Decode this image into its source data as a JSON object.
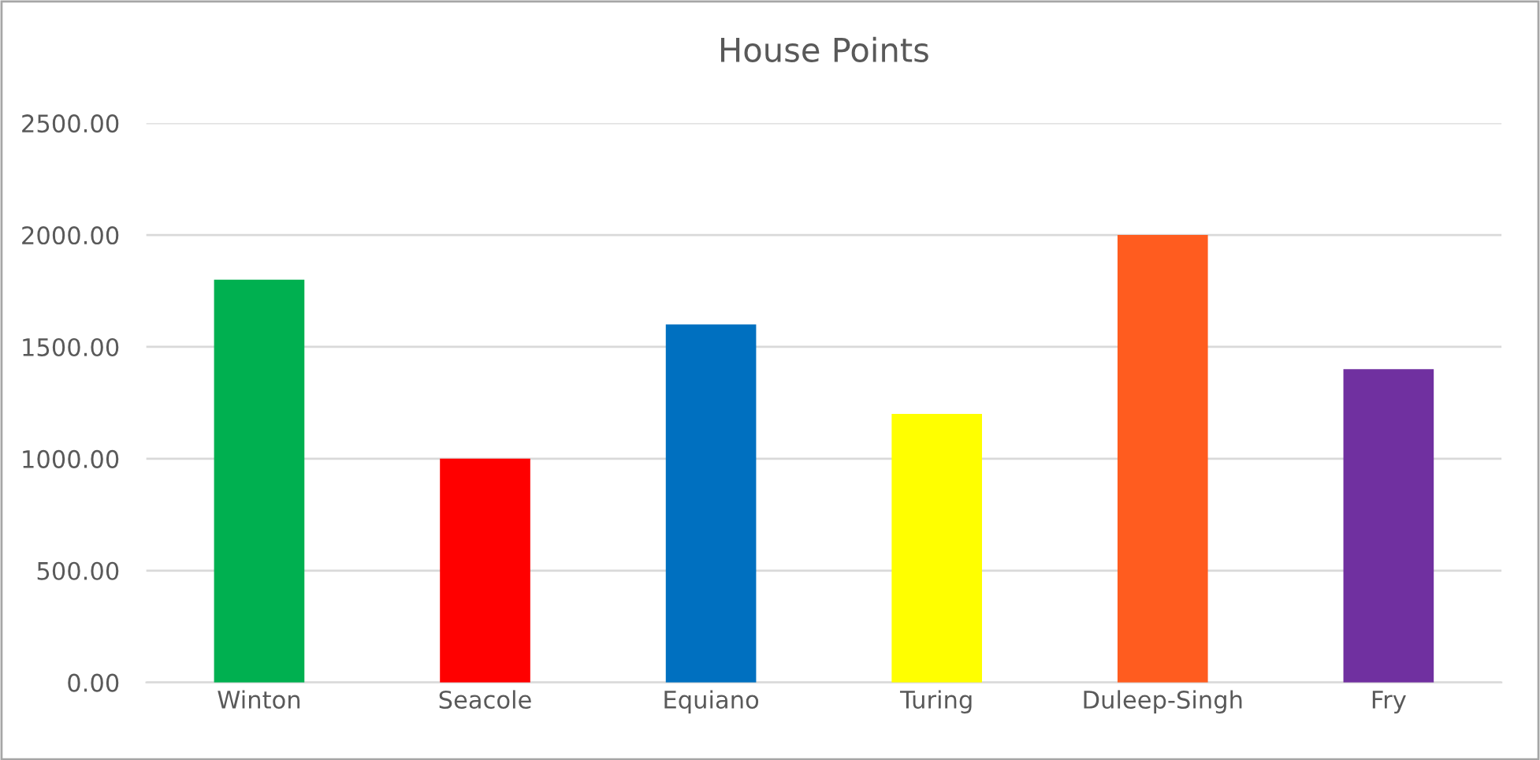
{
  "chart_data": {
    "type": "bar",
    "title": "House Points",
    "categories": [
      "Winton",
      "Seacole",
      "Equiano",
      "Turing",
      "Duleep-Singh",
      "Fry"
    ],
    "values": [
      1800,
      1000,
      1600,
      1200,
      2000,
      1400
    ],
    "colors": [
      "#00b050",
      "#ff0000",
      "#0070c0",
      "#ffff00",
      "#ff5c1f",
      "#7030a0"
    ],
    "ylim": [
      0,
      2500
    ],
    "yticks": [
      {
        "value": 0,
        "label": "0.00"
      },
      {
        "value": 500,
        "label": "500.00"
      },
      {
        "value": 1000,
        "label": "1000.00"
      },
      {
        "value": 1500,
        "label": "1500.00"
      },
      {
        "value": 2000,
        "label": "2000.00"
      },
      {
        "value": 2500,
        "label": "2500.00"
      }
    ],
    "grid": "y",
    "legend": false
  }
}
